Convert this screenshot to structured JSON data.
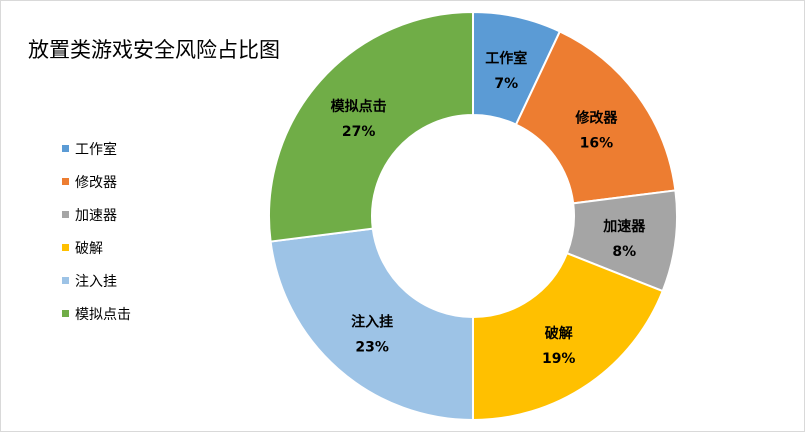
{
  "chart_data": {
    "type": "pie",
    "style": "donut",
    "title": "放置类游戏安全风险占比图",
    "legend_position": "left",
    "slices": [
      {
        "label": "工作室",
        "value": 7,
        "value_text": "7%",
        "color": "#5B9BD5"
      },
      {
        "label": "修改器",
        "value": 16,
        "value_text": "16%",
        "color": "#ED7D31"
      },
      {
        "label": "加速器",
        "value": 8,
        "value_text": "8%",
        "color": "#A5A5A5"
      },
      {
        "label": "破解",
        "value": 19,
        "value_text": "19%",
        "color": "#FFC000"
      },
      {
        "label": "注入挂",
        "value": 23,
        "value_text": "23%",
        "color": "#9DC3E6"
      },
      {
        "label": "模拟点击",
        "value": 27,
        "value_text": "27%",
        "color": "#70AD47"
      }
    ]
  }
}
